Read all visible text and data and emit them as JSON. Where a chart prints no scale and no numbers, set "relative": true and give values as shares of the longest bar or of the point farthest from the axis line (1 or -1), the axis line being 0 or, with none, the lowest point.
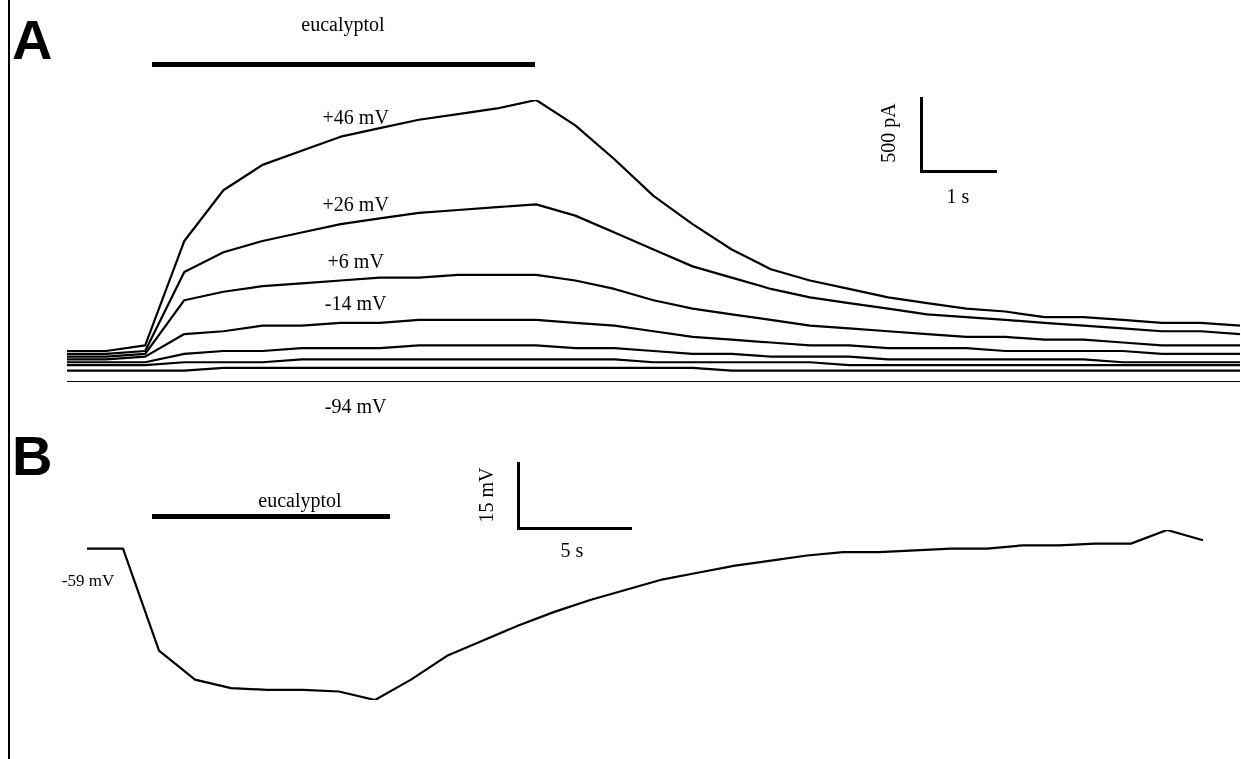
{
  "chart_data": [
    {
      "type": "line",
      "title": "A",
      "relative": true,
      "marker": "none",
      "annotations": [
        "eucalyptol",
        "500 pA",
        "1 s"
      ],
      "categories": [
        null,
        null,
        null,
        null,
        null,
        null,
        null,
        null,
        null,
        null,
        null,
        null,
        null,
        null,
        null,
        null,
        null,
        null,
        null,
        null,
        null,
        null,
        null,
        null,
        null,
        null,
        null,
        null,
        null,
        null,
        null
      ],
      "series": [
        {
          "name": "+46 mV",
          "color": "#000000",
          "values": [
            0.11,
            0.11,
            0.13,
            0.5,
            0.68,
            0.77,
            0.82,
            0.87,
            0.9,
            0.93,
            0.95,
            0.97,
            1.0,
            0.91,
            0.79,
            0.66,
            0.56,
            0.47,
            0.4,
            0.36,
            0.33,
            0.3,
            0.28,
            0.26,
            0.25,
            0.23,
            0.23,
            0.22,
            0.21,
            0.21,
            0.2
          ]
        },
        {
          "name": "+26 mV",
          "color": "#000000",
          "values": [
            0.1,
            0.1,
            0.11,
            0.39,
            0.46,
            0.5,
            0.53,
            0.56,
            0.58,
            0.6,
            0.61,
            0.62,
            0.63,
            0.59,
            0.53,
            0.47,
            0.41,
            0.37,
            0.33,
            0.3,
            0.28,
            0.26,
            0.24,
            0.23,
            0.22,
            0.21,
            0.2,
            0.19,
            0.18,
            0.18,
            0.17
          ]
        },
        {
          "name": "+6 mV",
          "color": "#000000",
          "values": [
            0.09,
            0.09,
            0.1,
            0.29,
            0.32,
            0.34,
            0.35,
            0.36,
            0.37,
            0.37,
            0.38,
            0.38,
            0.38,
            0.36,
            0.33,
            0.29,
            0.26,
            0.24,
            0.22,
            0.2,
            0.19,
            0.18,
            0.17,
            0.16,
            0.16,
            0.15,
            0.15,
            0.14,
            0.13,
            0.13,
            0.13
          ]
        },
        {
          "name": "-14 mV",
          "color": "#000000",
          "values": [
            0.08,
            0.08,
            0.09,
            0.17,
            0.18,
            0.2,
            0.2,
            0.21,
            0.21,
            0.22,
            0.22,
            0.22,
            0.22,
            0.21,
            0.2,
            0.18,
            0.16,
            0.15,
            0.14,
            0.13,
            0.13,
            0.12,
            0.12,
            0.12,
            0.11,
            0.11,
            0.11,
            0.11,
            0.1,
            0.1,
            0.1
          ]
        },
        {
          "color": "#000000",
          "values": [
            0.07,
            0.07,
            0.07,
            0.1,
            0.11,
            0.11,
            0.12,
            0.12,
            0.12,
            0.13,
            0.13,
            0.13,
            0.13,
            0.12,
            0.12,
            0.11,
            0.1,
            0.1,
            0.09,
            0.09,
            0.09,
            0.08,
            0.08,
            0.08,
            0.08,
            0.08,
            0.08,
            0.07,
            0.07,
            0.07,
            0.07
          ]
        },
        {
          "color": "#000000",
          "values": [
            0.06,
            0.06,
            0.06,
            0.07,
            0.07,
            0.07,
            0.08,
            0.08,
            0.08,
            0.08,
            0.08,
            0.08,
            0.08,
            0.08,
            0.08,
            0.07,
            0.07,
            0.07,
            0.07,
            0.07,
            0.06,
            0.06,
            0.06,
            0.06,
            0.06,
            0.06,
            0.06,
            0.06,
            0.06,
            0.06,
            0.06
          ]
        },
        {
          "color": "#000000",
          "values": [
            0.04,
            0.04,
            0.04,
            0.04,
            0.05,
            0.05,
            0.05,
            0.05,
            0.05,
            0.05,
            0.05,
            0.05,
            0.05,
            0.05,
            0.05,
            0.05,
            0.05,
            0.04,
            0.04,
            0.04,
            0.04,
            0.04,
            0.04,
            0.04,
            0.04,
            0.04,
            0.04,
            0.04,
            0.04,
            0.04,
            0.04
          ]
        },
        {
          "name": "-94 mV",
          "color": "#000000",
          "values": [
            0,
            0,
            0,
            0,
            0,
            0,
            0,
            0,
            0,
            0,
            0,
            0,
            0,
            0,
            0,
            0,
            0,
            0,
            0,
            0,
            0,
            0,
            0,
            0,
            0,
            0,
            0,
            0,
            0,
            0,
            0
          ]
        }
      ]
    },
    {
      "type": "line",
      "title": "B",
      "relative": true,
      "marker": "none",
      "annotations": [
        "eucalyptol",
        "15 mV",
        "5 s",
        "-59 mV"
      ],
      "categories": [
        null,
        null,
        null,
        null,
        null,
        null,
        null,
        null,
        null,
        null,
        null,
        null,
        null,
        null,
        null,
        null,
        null,
        null,
        null,
        null,
        null,
        null,
        null,
        null,
        null,
        null,
        null,
        null,
        null,
        null,
        null,
        null
      ],
      "series": [
        {
          "color": "#000000",
          "values": [
            0.89,
            0.89,
            0.29,
            0.12,
            0.07,
            0.06,
            0.06,
            0.05,
            0,
            0.12,
            0.26,
            0.35,
            0.44,
            0.52,
            0.59,
            0.65,
            0.71,
            0.75,
            0.79,
            0.82,
            0.85,
            0.87,
            0.87,
            0.88,
            0.89,
            0.89,
            0.91,
            0.91,
            0.92,
            0.92,
            1.0,
            0.94
          ]
        }
      ]
    }
  ]
}
